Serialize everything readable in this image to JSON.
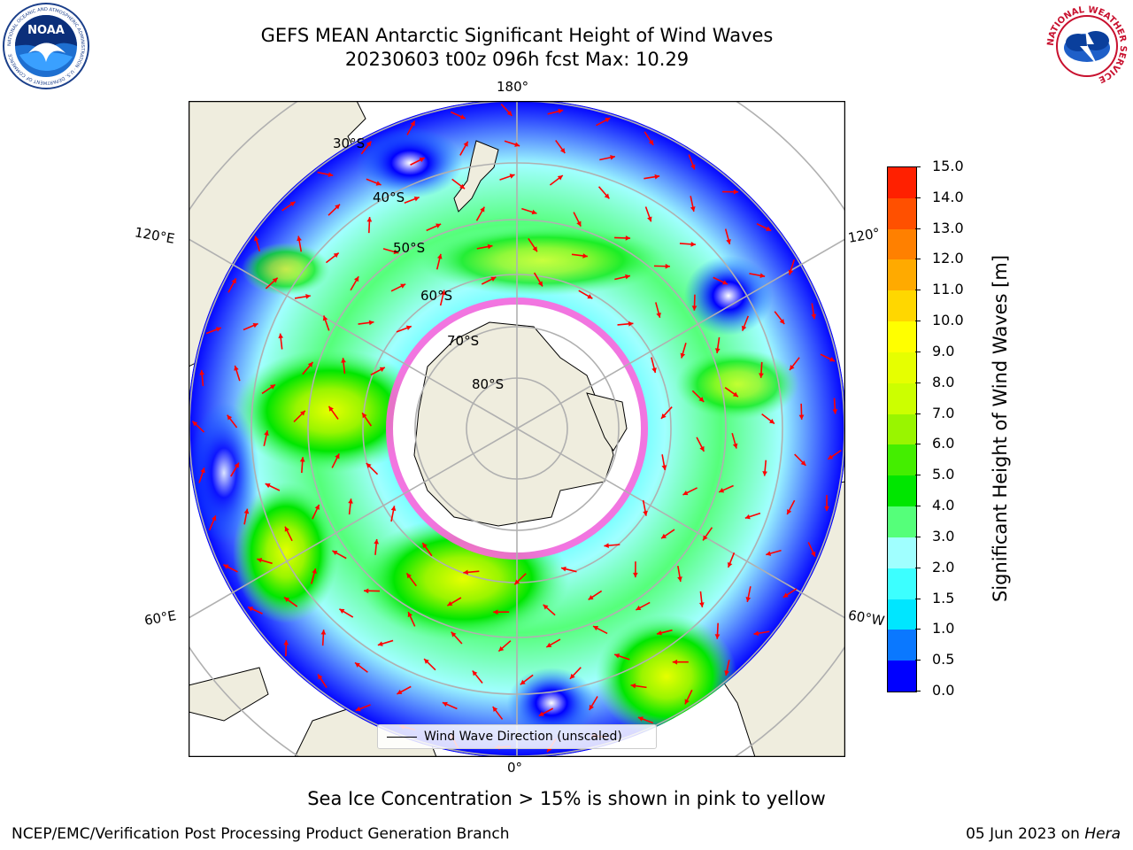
{
  "header": {
    "title_line1": "GEFS MEAN Antarctic Significant Height of Wind Waves",
    "title_line2": "20230603 t00z 096h fcst   Max: 10.29"
  },
  "logos": {
    "left": {
      "icon": "noaa-logo",
      "text": "NOAA",
      "ring_text": "NATIONAL OCEANIC AND ATMOSPHERIC ADMINISTRATION · U.S. DEPARTMENT OF COMMERCE"
    },
    "right": {
      "icon": "nws-logo",
      "ring_text": "NATIONAL WEATHER SERVICE"
    }
  },
  "map": {
    "projection": "south polar stereographic",
    "longitude_labels": {
      "top": "180°",
      "bottom": "0°",
      "upper_left": "120°E",
      "lower_left": "60°E",
      "upper_right": "120°",
      "lower_right": "60°W"
    },
    "latitude_labels": [
      "30°S",
      "40°S",
      "50°S",
      "60°S",
      "70°S",
      "80°S"
    ],
    "colors": {
      "land": "#efedde",
      "ice": "#ff44cc",
      "arrow": "#ff0000",
      "grid": "#b0b0b0"
    },
    "legend_label": "Wind Wave Direction (unscaled)"
  },
  "colorbar": {
    "label": "Significant Height of Wind Waves [m]",
    "ticks": [
      "0.0",
      "0.5",
      "1.0",
      "1.5",
      "2.0",
      "3.0",
      "4.0",
      "5.0",
      "6.0",
      "7.0",
      "8.0",
      "9.0",
      "10.0",
      "11.0",
      "12.0",
      "13.0",
      "14.0",
      "15.0"
    ],
    "colors": [
      "#0000ff",
      "#0a78ff",
      "#00e6ff",
      "#3cffff",
      "#a0ffff",
      "#55ff7a",
      "#00e600",
      "#44ee00",
      "#99f500",
      "#ccff00",
      "#e6ff00",
      "#ffff00",
      "#ffd700",
      "#ffaa00",
      "#ff8000",
      "#ff5000",
      "#ff2000"
    ]
  },
  "caption": "Sea Ice Concentration > 15% is shown in pink to yellow",
  "footer": {
    "left": "NCEP/EMC/Verification Post Processing Product Generation Branch",
    "right_date": "05 Jun 2023 on ",
    "right_host": "Hera"
  }
}
